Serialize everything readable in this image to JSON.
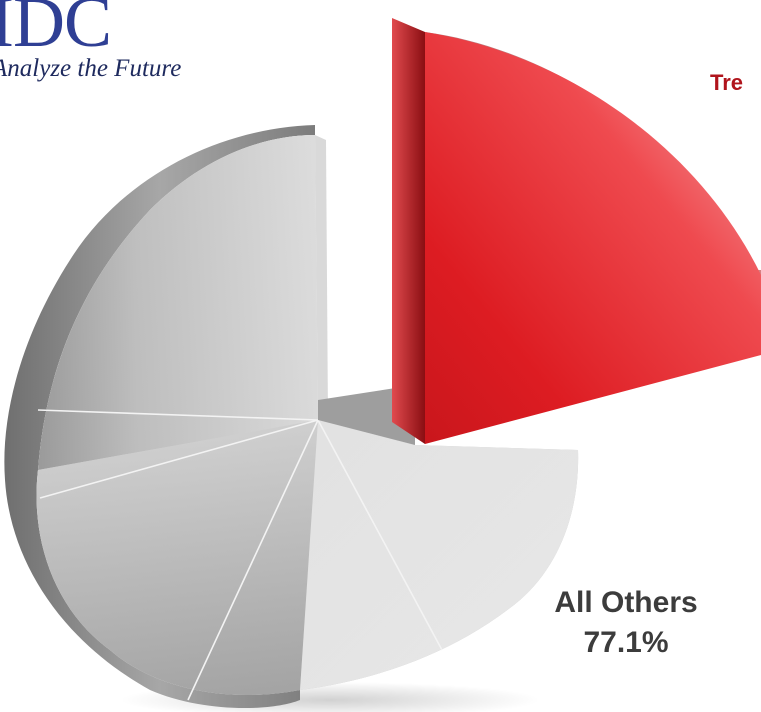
{
  "logo": {
    "mark": "IDC",
    "tagline": "Analyze the Future"
  },
  "chart_data": {
    "type": "pie",
    "title": "",
    "slices": [
      {
        "label": "Tre",
        "value": 22.9,
        "display": "",
        "color": "#e02327",
        "exploded": true
      },
      {
        "label": "All Others",
        "value": 77.1,
        "display": "77.1%",
        "color": "#c9c9c9",
        "exploded": false
      }
    ],
    "legend": "none"
  },
  "colors": {
    "highlight": "#e02327",
    "highlight_label": "#b0141c",
    "others": "#c9c9c9",
    "label_text": "#3c3c3c"
  }
}
